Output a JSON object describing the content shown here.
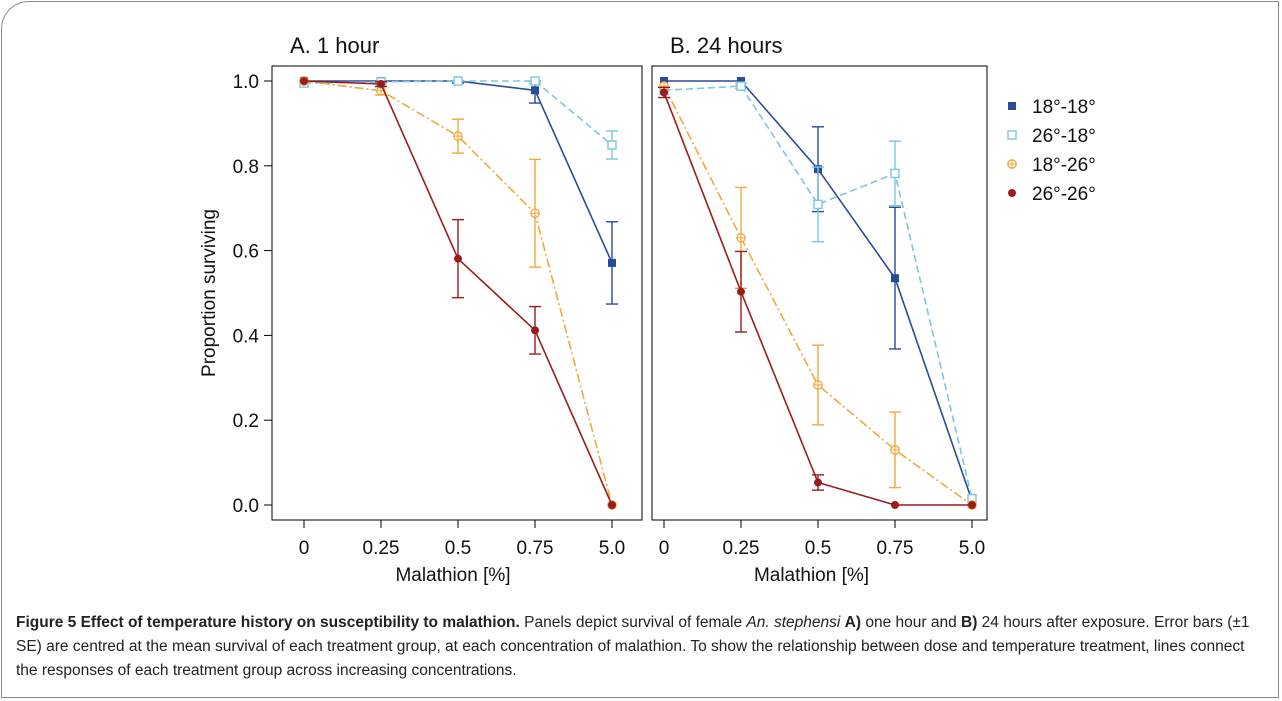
{
  "chart_data": [
    {
      "type": "line",
      "title": "A. 1 hour",
      "xlabel": "Malathion [%]",
      "ylabel": "Proportion surviving",
      "categories": [
        "0",
        "0.25",
        "0.5",
        "0.75",
        "5.0"
      ],
      "ylim": [
        0,
        1
      ],
      "yticks": [
        "0.0",
        "0.2",
        "0.4",
        "0.6",
        "0.8",
        "1.0"
      ],
      "grid": false,
      "series": [
        {
          "name": "18°-18°",
          "color": "#2a4b9a",
          "marker": "filled-square",
          "dash": "solid",
          "values": [
            1.0,
            1.0,
            1.0,
            0.978,
            0.571
          ],
          "se": [
            0,
            0.004,
            0.005,
            0.03,
            0.097
          ]
        },
        {
          "name": "26°-18°",
          "color": "#7cc6e0",
          "marker": "open-square",
          "dash": "dashed",
          "values": [
            0.995,
            0.998,
            1.0,
            1.0,
            0.849
          ],
          "se": [
            0,
            0.004,
            0,
            0.006,
            0.033
          ]
        },
        {
          "name": "18°-26°",
          "color": "#f1a83b",
          "marker": "crossed-circle",
          "dash": "dashdot",
          "values": [
            1.0,
            0.977,
            0.87,
            0.688,
            0.0
          ],
          "se": [
            0,
            0.01,
            0.04,
            0.127,
            0
          ]
        },
        {
          "name": "26°-26°",
          "color": "#9b1c1c",
          "marker": "filled-circle",
          "dash": "solid",
          "values": [
            1.0,
            0.993,
            0.581,
            0.412,
            0.0
          ],
          "se": [
            0,
            0.006,
            0.092,
            0.056,
            0
          ]
        }
      ]
    },
    {
      "type": "line",
      "title": "B. 24 hours",
      "xlabel": "Malathion [%]",
      "categories": [
        "0",
        "0.25",
        "0.5",
        "0.75",
        "5.0"
      ],
      "ylim": [
        0,
        1
      ],
      "grid": false,
      "legend": "right",
      "series": [
        {
          "name": "18°-18°",
          "color": "#2a4b9a",
          "marker": "filled-square",
          "dash": "solid",
          "values": [
            1.0,
            1.0,
            0.792,
            0.535,
            0.01
          ],
          "se": [
            0,
            0,
            0.1,
            0.167,
            0
          ]
        },
        {
          "name": "26°-18°",
          "color": "#7cc6e0",
          "marker": "open-square",
          "dash": "dashed",
          "values": [
            0.978,
            0.988,
            0.709,
            0.782,
            0.015
          ],
          "se": [
            0,
            0.006,
            0.088,
            0.076,
            0
          ]
        },
        {
          "name": "18°-26°",
          "color": "#f1a83b",
          "marker": "crossed-circle",
          "dash": "dashdot",
          "values": [
            0.988,
            0.63,
            0.283,
            0.13,
            0.0
          ],
          "se": [
            0,
            0.119,
            0.094,
            0.089,
            0
          ]
        },
        {
          "name": "26°-26°",
          "color": "#9b1c1c",
          "marker": "filled-circle",
          "dash": "solid",
          "values": [
            0.973,
            0.503,
            0.053,
            0.0,
            0.0
          ],
          "se": [
            0.012,
            0.095,
            0.018,
            0,
            0
          ]
        }
      ]
    }
  ],
  "caption": {
    "label": "Figure 5 Effect of temperature history on susceptibility to malathion.",
    "text_1": " Panels depict survival of female ",
    "species": "An. stephensi",
    "text_2": " ",
    "panel_a": "A)",
    "text_3": " one hour and ",
    "panel_b": "B)",
    "text_4": " 24 hours after exposure. Error bars (±1 SE) are centred at the mean survival of each treatment group, at each concentration of malathion. To show the relationship between dose and temperature treatment, lines connect the responses of each treatment group across increasing concentrations."
  }
}
